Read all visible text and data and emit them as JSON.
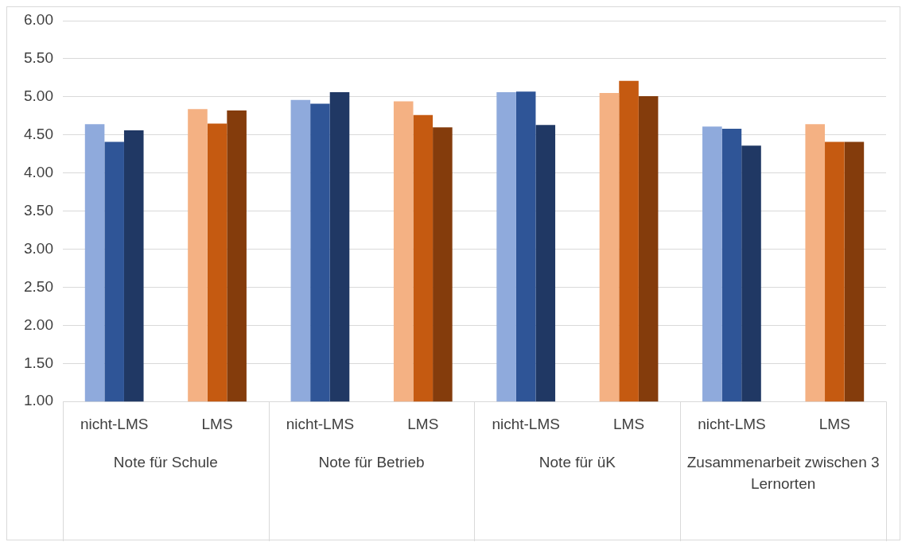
{
  "chart_data": {
    "type": "bar",
    "categories": [
      "nicht-LMS",
      "LMS",
      "nicht-LMS",
      "LMS",
      "nicht-LMS",
      "LMS",
      "nicht-LMS",
      "LMS"
    ],
    "series": [
      {
        "colors": [
          "#8faadc",
          "#f4b183",
          "#8faadc",
          "#f4b183",
          "#8faadc",
          "#f4b183",
          "#8faadc",
          "#f4b183"
        ],
        "values": [
          4.64,
          4.84,
          4.96,
          4.94,
          5.06,
          5.05,
          4.61,
          4.64
        ]
      },
      {
        "colors": [
          "#2f5597",
          "#c55a11",
          "#2f5597",
          "#c55a11",
          "#2f5597",
          "#c55a11",
          "#2f5597",
          "#c55a11"
        ],
        "values": [
          4.41,
          4.65,
          4.91,
          4.76,
          5.07,
          5.21,
          4.58,
          4.41
        ]
      },
      {
        "colors": [
          "#203864",
          "#843c0c",
          "#203864",
          "#843c0c",
          "#203864",
          "#843c0c",
          "#203864",
          "#843c0c"
        ],
        "values": [
          4.56,
          4.82,
          5.06,
          4.6,
          4.63,
          5.01,
          4.36,
          4.41
        ]
      }
    ],
    "annotations": [
      "Note für Schule",
      "Note für Betrieb",
      "Note für üK",
      "Zusammenarbeit zwischen 3 Lernorten"
    ],
    "ylim": [
      1,
      6
    ],
    "yticks": [
      {
        "value": 1,
        "label": "1.00"
      },
      {
        "value": 1.5,
        "label": "1.50"
      },
      {
        "value": 2,
        "label": "2.00"
      },
      {
        "value": 2.5,
        "label": "2.50"
      },
      {
        "value": 3,
        "label": "3.00"
      },
      {
        "value": 3.5,
        "label": "3.50"
      },
      {
        "value": 4,
        "label": "4.00"
      },
      {
        "value": 4.5,
        "label": "4.50"
      },
      {
        "value": 5,
        "label": "5.00"
      },
      {
        "value": 5.5,
        "label": "5.50"
      },
      {
        "value": 6,
        "label": "6.00"
      }
    ],
    "grid": "y",
    "legend": false
  }
}
